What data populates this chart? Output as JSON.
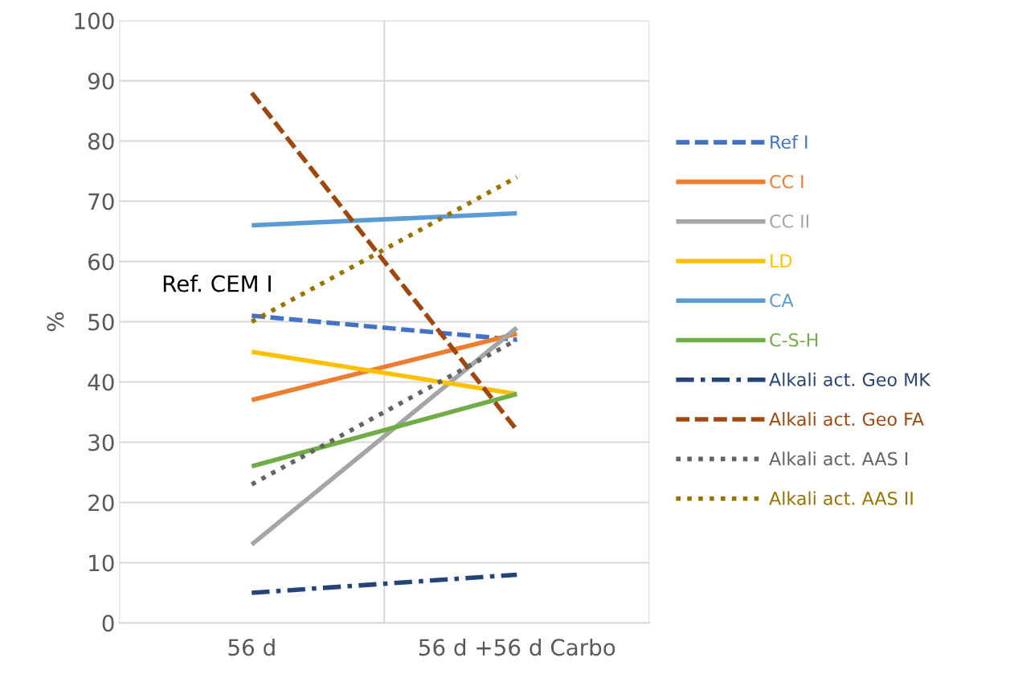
{
  "chart_data": {
    "type": "line",
    "ylabel": "%",
    "categories": [
      "56 d",
      "56 d +56 d Carbo"
    ],
    "ylim": [
      0,
      100
    ],
    "yticks": [
      0,
      10,
      20,
      30,
      40,
      50,
      60,
      70,
      80,
      90,
      100
    ],
    "grid": true,
    "legend": "right",
    "marker": "none",
    "annotations": [
      "Ref. CEM I"
    ],
    "series": [
      {
        "name": "Ref I",
        "color": "#4472c4",
        "line_style": "dashed",
        "values": [
          51,
          47
        ]
      },
      {
        "name": "CC I",
        "color": "#ed7d31",
        "line_style": "solid",
        "values": [
          37,
          48
        ]
      },
      {
        "name": "CC II",
        "color": "#a5a5a5",
        "line_style": "solid",
        "values": [
          13,
          49
        ]
      },
      {
        "name": "LD",
        "color": "#ffc000",
        "line_style": "solid",
        "values": [
          45,
          38
        ]
      },
      {
        "name": "CA",
        "color": "#5b9bd5",
        "line_style": "solid",
        "values": [
          66,
          68
        ]
      },
      {
        "name": "C-S-H",
        "color": "#70ad47",
        "line_style": "solid",
        "values": [
          26,
          38
        ]
      },
      {
        "name": "Alkali act. Geo MK",
        "color": "#264478",
        "line_style": "dashdot",
        "values": [
          5,
          8
        ]
      },
      {
        "name": "Alkali act. Geo FA",
        "color": "#9e480e",
        "line_style": "dashed",
        "values": [
          88,
          32
        ]
      },
      {
        "name": "Alkali act. AAS I",
        "color": "#636363",
        "line_style": "dotted",
        "values": [
          23,
          47
        ]
      },
      {
        "name": "Alkali act. AAS II",
        "color": "#997300",
        "line_style": "dotted",
        "values": [
          50,
          74
        ]
      }
    ]
  }
}
